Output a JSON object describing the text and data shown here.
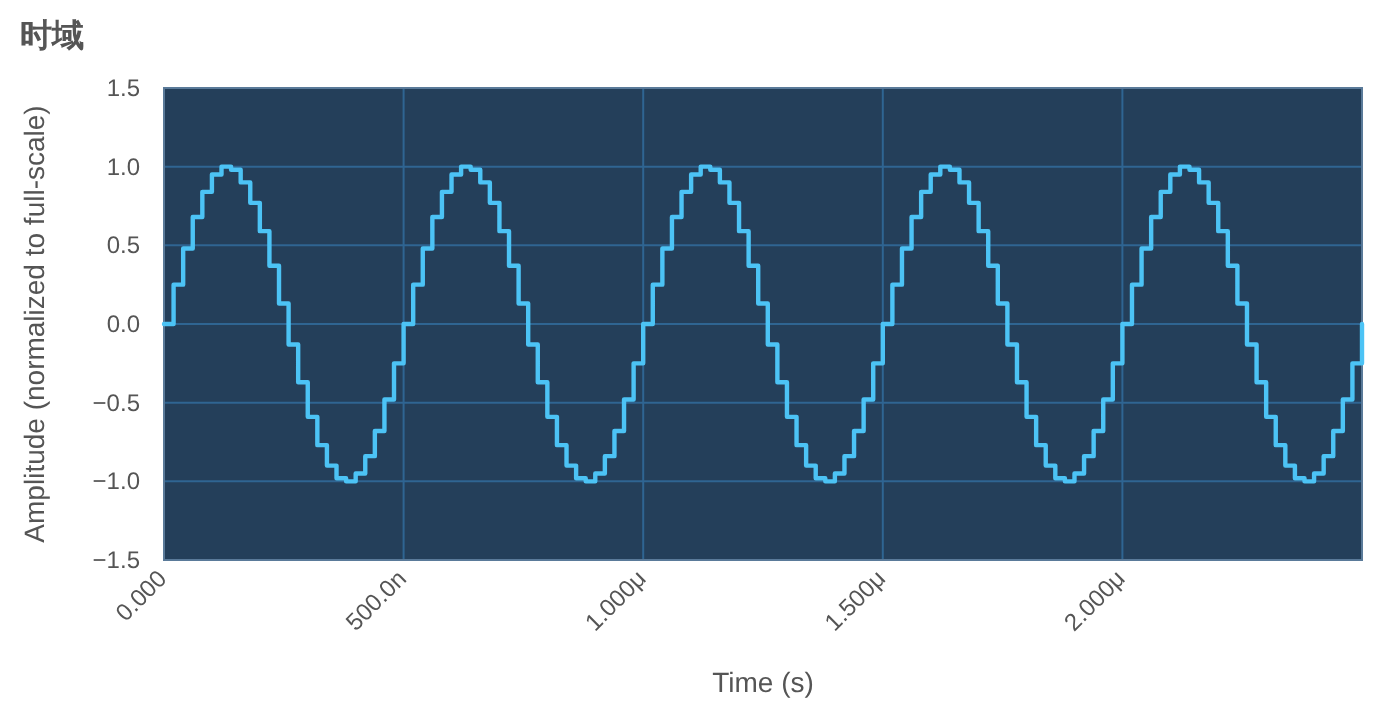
{
  "chart_data": {
    "type": "step",
    "title": "时域",
    "xlabel": "Time (s)",
    "ylabel": "Amplitude (normalized to full-scale)",
    "categories": [
      "0.000",
      null,
      null,
      null,
      null,
      null,
      null,
      null,
      null,
      null,
      null,
      null,
      null,
      null,
      null,
      null,
      null,
      null,
      null,
      null,
      null,
      null,
      null,
      null,
      null,
      "500.0n",
      null,
      null,
      null,
      null,
      null,
      null,
      null,
      null,
      null,
      null,
      null,
      null,
      null,
      null,
      null,
      null,
      null,
      null,
      null,
      null,
      null,
      null,
      null,
      null,
      "1.000μ",
      null,
      null,
      null,
      null,
      null,
      null,
      null,
      null,
      null,
      null,
      null,
      null,
      null,
      null,
      null,
      null,
      null,
      null,
      null,
      null,
      null,
      null,
      null,
      null,
      "1.500μ",
      null,
      null,
      null,
      null,
      null,
      null,
      null,
      null,
      null,
      null,
      null,
      null,
      null,
      null,
      null,
      null,
      null,
      null,
      null,
      null,
      null,
      null,
      null,
      null,
      "2.000μ",
      null,
      null,
      null,
      null,
      null,
      null,
      null,
      null,
      null,
      null,
      null,
      null,
      null,
      null,
      null,
      null,
      null,
      null,
      null,
      null,
      null,
      null,
      null,
      null,
      null
    ],
    "series": [
      {
        "color": "#4cc3f5",
        "values": [
          0,
          0.25,
          0.48,
          0.68,
          0.84,
          0.95,
          1.0,
          0.98,
          0.9,
          0.77,
          0.59,
          0.37,
          0.13,
          -0.13,
          -0.37,
          -0.59,
          -0.77,
          -0.9,
          -0.98,
          -1.0,
          -0.95,
          -0.84,
          -0.68,
          -0.48,
          -0.25,
          0,
          0.25,
          0.48,
          0.68,
          0.84,
          0.95,
          1.0,
          0.98,
          0.9,
          0.77,
          0.59,
          0.37,
          0.13,
          -0.13,
          -0.37,
          -0.59,
          -0.77,
          -0.9,
          -0.98,
          -1.0,
          -0.95,
          -0.84,
          -0.68,
          -0.48,
          -0.25,
          0,
          0.25,
          0.48,
          0.68,
          0.84,
          0.95,
          1.0,
          0.98,
          0.9,
          0.77,
          0.59,
          0.37,
          0.13,
          -0.13,
          -0.37,
          -0.59,
          -0.77,
          -0.9,
          -0.98,
          -1.0,
          -0.95,
          -0.84,
          -0.68,
          -0.48,
          -0.25,
          0,
          0.25,
          0.48,
          0.68,
          0.84,
          0.95,
          1.0,
          0.98,
          0.9,
          0.77,
          0.59,
          0.37,
          0.13,
          -0.13,
          -0.37,
          -0.59,
          -0.77,
          -0.9,
          -0.98,
          -1.0,
          -0.95,
          -0.84,
          -0.68,
          -0.48,
          -0.25,
          0,
          0.25,
          0.48,
          0.68,
          0.84,
          0.95,
          1.0,
          0.98,
          0.9,
          0.77,
          0.59,
          0.37,
          0.13,
          -0.13,
          -0.37,
          -0.59,
          -0.77,
          -0.9,
          -0.98,
          -1.0,
          -0.95,
          -0.84,
          -0.68,
          -0.48,
          -0.25,
          0
        ]
      }
    ],
    "ylim": [
      -1.5,
      1.5
    ],
    "yticks": [
      {
        "value": 1.5,
        "label": "1.5"
      },
      {
        "value": 1.0,
        "label": "1.0"
      },
      {
        "value": 0.5,
        "label": "0.5"
      },
      {
        "value": 0,
        "label": "0.0"
      },
      {
        "value": -0.5,
        "label": "−0.5"
      },
      {
        "value": -1.0,
        "label": "−1.0"
      },
      {
        "value": -1.5,
        "label": "−1.5"
      }
    ],
    "grid": true,
    "line_style": "solid"
  }
}
